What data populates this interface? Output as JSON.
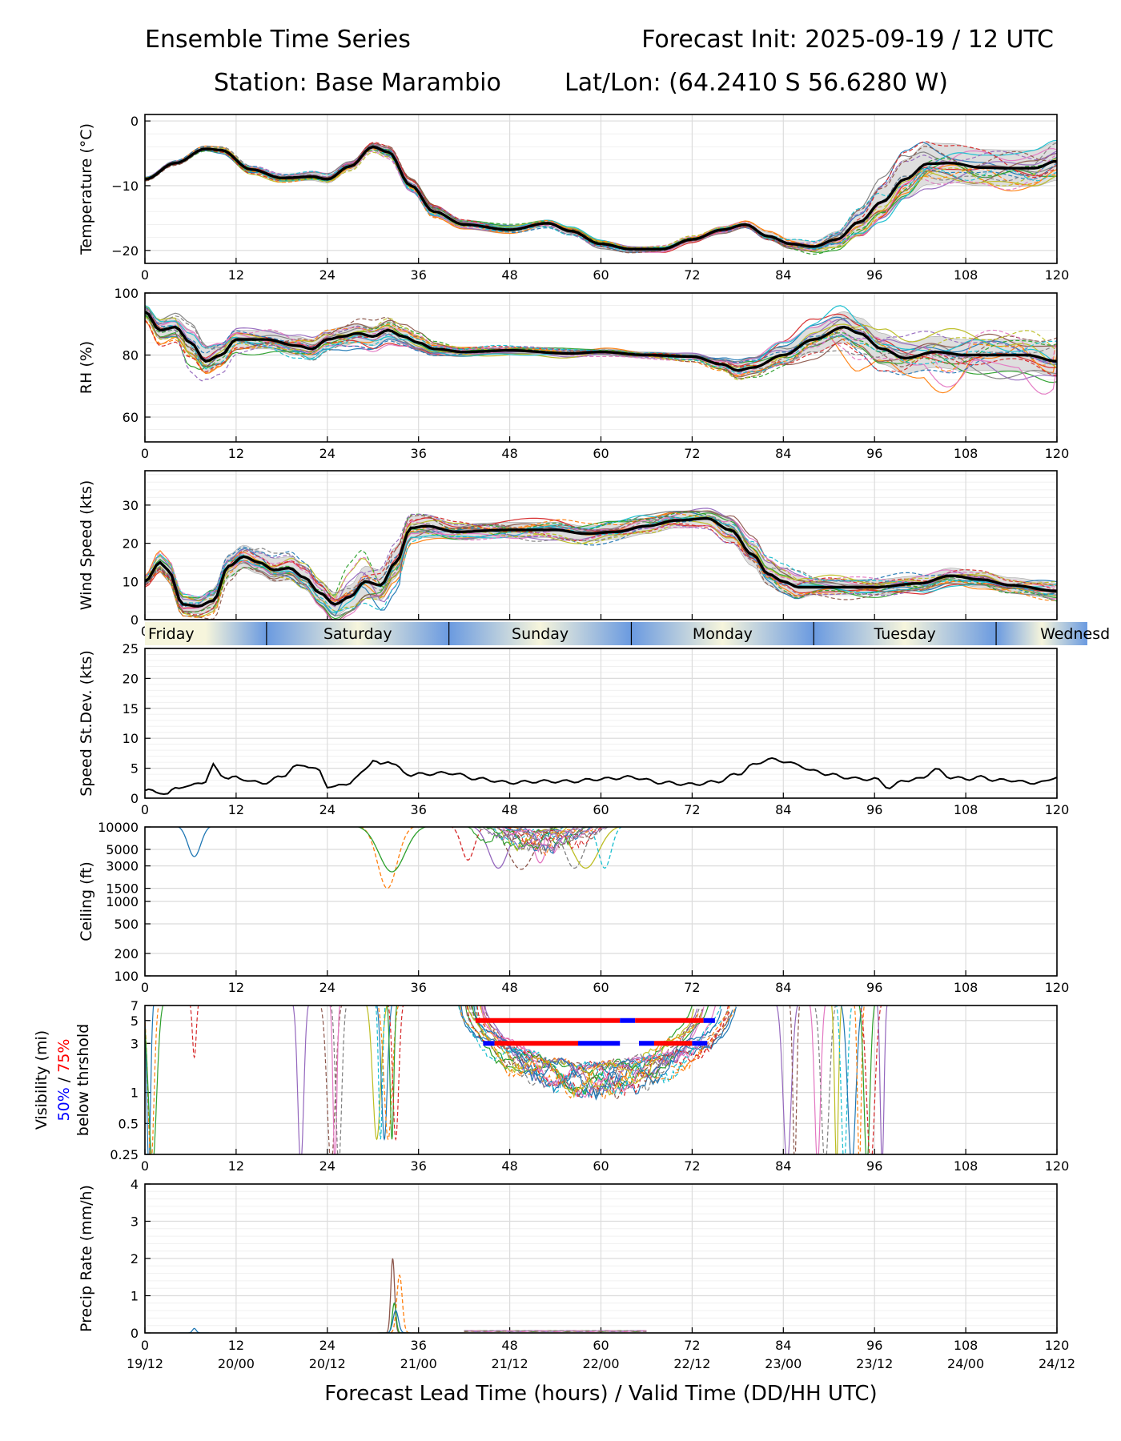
{
  "header": {
    "title_left": "Ensemble Time Series",
    "title_right": "Forecast Init: 2025-09-19 / 12 UTC",
    "station": "Station: Base Marambio",
    "latlon": "Lat/Lon: (64.2410 S 56.6280 W)"
  },
  "colors": {
    "members": [
      "#1f77b4",
      "#ff7f0e",
      "#2ca02c",
      "#d62728",
      "#9467bd",
      "#8c564b",
      "#e377c2",
      "#7f7f7f",
      "#bcbd22",
      "#17becf"
    ],
    "mean": "#000000",
    "spread_fill": "#d9d9d9",
    "vis_50": "#0000ff",
    "vis_75": "#ff0000",
    "day_light": "#f6f5dc",
    "day_dark": "#6a9ae0"
  },
  "days": {
    "labels": [
      "Friday",
      "Saturday",
      "Sunday",
      "Monday",
      "Tuesday",
      "Wednesd"
    ],
    "boundaries_hours": [
      16,
      40,
      64,
      88,
      112
    ]
  },
  "x_axis": {
    "hour_ticks": [
      "0",
      "12",
      "24",
      "36",
      "48",
      "60",
      "72",
      "84",
      "96",
      "108",
      "120"
    ],
    "valid_times": [
      "19/12",
      "20/00",
      "20/12",
      "21/00",
      "21/12",
      "22/00",
      "22/12",
      "23/00",
      "23/12",
      "24/00",
      "24/12"
    ],
    "xlabel": "Forecast Lead Time (hours) / Valid Time (DD/HH UTC)",
    "range": [
      0,
      120
    ]
  },
  "chart_data": [
    {
      "id": "temperature",
      "type": "line",
      "ylabel": "Temperature (°C)",
      "ylim": [
        -22,
        1
      ],
      "yticks": [
        0,
        -10,
        -20
      ],
      "ytick_labels": [
        "0",
        "−10",
        "−20"
      ],
      "mean": {
        "x": [
          0,
          4,
          8,
          10,
          14,
          18,
          22,
          24,
          27,
          30,
          32,
          35,
          38,
          42,
          48,
          53,
          56,
          60,
          64,
          68,
          72,
          76,
          79,
          82,
          85,
          88,
          91,
          94,
          97,
          100,
          103,
          106,
          110,
          114,
          117,
          120
        ],
        "y": [
          -9,
          -6.5,
          -4.3,
          -4.5,
          -7.5,
          -8.8,
          -8.6,
          -9,
          -7,
          -4,
          -4.8,
          -10,
          -14,
          -16,
          -16.8,
          -15.8,
          -17,
          -19,
          -19.8,
          -19.8,
          -18.3,
          -16.8,
          -16,
          -17.8,
          -19,
          -19.4,
          -18.3,
          -15.6,
          -12.5,
          -9,
          -6.6,
          -6.5,
          -7.2,
          -7.3,
          -7.3,
          -6.2
        ]
      },
      "spread": [
        0.3,
        0.3,
        0.3,
        0.4,
        0.5,
        0.6,
        0.6,
        0.6,
        0.6,
        0.6,
        0.7,
        0.8,
        0.8,
        0.7,
        0.6,
        0.5,
        0.5,
        0.5,
        0.4,
        0.4,
        0.4,
        0.5,
        0.5,
        0.6,
        0.7,
        0.8,
        1.2,
        1.8,
        2.5,
        3,
        3.2,
        3,
        2.8,
        2.8,
        2.8,
        3
      ]
    },
    {
      "id": "rh",
      "type": "line",
      "ylabel": "RH (%)",
      "ylim": [
        52,
        100
      ],
      "yticks": [
        100,
        80,
        60
      ],
      "ytick_labels": [
        "100",
        "80",
        "60"
      ],
      "mean": {
        "x": [
          0,
          2,
          4,
          6,
          8,
          10,
          12,
          16,
          20,
          22,
          24,
          26,
          28,
          30,
          32,
          34,
          36,
          38,
          42,
          48,
          56,
          60,
          66,
          72,
          76,
          78,
          80,
          84,
          88,
          92,
          94,
          97,
          100,
          104,
          108,
          112,
          116,
          120
        ],
        "y": [
          94,
          88,
          89,
          84,
          78,
          80,
          85,
          85,
          83,
          82,
          85,
          86,
          87,
          86,
          88,
          86,
          84,
          82,
          81,
          81.5,
          80.5,
          81,
          80,
          79.5,
          77,
          75,
          76,
          80,
          85,
          89,
          87,
          82,
          79,
          81,
          80,
          80,
          80,
          78
        ]
      },
      "spread": [
        2,
        3,
        3,
        4,
        4,
        3.5,
        3,
        3,
        3,
        3,
        3,
        3,
        3,
        3,
        3,
        2.5,
        2,
        1.5,
        1,
        1,
        1,
        1,
        1,
        1,
        1.5,
        2,
        2,
        3,
        4,
        5,
        5,
        5,
        5,
        5,
        5,
        5,
        5,
        5
      ]
    },
    {
      "id": "wind_speed",
      "type": "line",
      "ylabel": "Wind Speed (kts)",
      "ylim": [
        0,
        39
      ],
      "yticks": [
        0,
        10,
        20,
        30
      ],
      "ytick_labels": [
        "0",
        "10",
        "20",
        "30"
      ],
      "mean": {
        "x": [
          0,
          2,
          3,
          5,
          7,
          9,
          11,
          13,
          15,
          17,
          19,
          21,
          23,
          25,
          27,
          29,
          31,
          33,
          35,
          37,
          41,
          48,
          54,
          58,
          62,
          66,
          70,
          74,
          77,
          80,
          82,
          84,
          86,
          88,
          96,
          102,
          106,
          110,
          114,
          120
        ],
        "y": [
          10,
          15,
          13,
          4,
          3.5,
          5,
          14,
          16.5,
          15,
          13,
          13.5,
          11,
          7,
          4,
          6,
          10,
          9,
          15,
          24,
          24.5,
          23,
          23.5,
          23.5,
          22.5,
          23,
          24.5,
          26,
          26.5,
          23.5,
          17,
          12,
          10,
          8.5,
          8.5,
          8.5,
          9.5,
          11.5,
          10.5,
          9,
          7.5
        ]
      },
      "spread": [
        1,
        2,
        2,
        2,
        2,
        3,
        3,
        3,
        3,
        3,
        3,
        3,
        3,
        3,
        3,
        4,
        4,
        4,
        3,
        3,
        2,
        2,
        2,
        2,
        2,
        2,
        2,
        2,
        3,
        3,
        3,
        3,
        3,
        2,
        2,
        2,
        2,
        2,
        2,
        2
      ]
    },
    {
      "id": "speed_stdev",
      "type": "line",
      "ylabel": "Speed St.Dev. (kts)",
      "ylim": [
        0,
        25
      ],
      "yticks": [
        0,
        5,
        10,
        15,
        20,
        25
      ],
      "ytick_labels": [
        "0",
        "5",
        "10",
        "15",
        "20",
        "25"
      ],
      "series": [
        {
          "name": "St.Dev.",
          "x": [
            0,
            2,
            3,
            4,
            5,
            6,
            7,
            8,
            9,
            10,
            11,
            12,
            13,
            14,
            16,
            18,
            20,
            21,
            22,
            23,
            24,
            25,
            26,
            27,
            28,
            29,
            30,
            31,
            32,
            33,
            34,
            35,
            36,
            40,
            44,
            48,
            52,
            56,
            60,
            64,
            68,
            72,
            75,
            78,
            80,
            82,
            84,
            86,
            88,
            90,
            92,
            94,
            96,
            98,
            100,
            102,
            104,
            106,
            108,
            110,
            112,
            114,
            116,
            118,
            120
          ],
          "y": [
            1.3,
            1,
            0.6,
            1.7,
            2,
            1.9,
            2.6,
            2.8,
            5.5,
            4,
            3.2,
            3.5,
            3.2,
            2.7,
            2.6,
            3.7,
            5.3,
            5.6,
            5,
            4.5,
            2,
            1.8,
            2.3,
            2.6,
            3.5,
            5,
            6.3,
            5.5,
            6.3,
            5.5,
            4.3,
            3.9,
            4,
            4.2,
            3.2,
            2.6,
            2.8,
            2.8,
            3.2,
            3.5,
            2.6,
            2.3,
            2.7,
            4,
            5.5,
            6.5,
            6.2,
            5.5,
            4.5,
            4,
            3.5,
            3.2,
            3.2,
            1.8,
            3,
            3.2,
            4.8,
            3.5,
            3.2,
            3.5,
            3,
            3,
            2.6,
            2.6,
            3.6
          ]
        }
      ]
    },
    {
      "id": "ceiling",
      "type": "line",
      "ylabel": "Ceiling (ft)",
      "yscale": "log",
      "ylim": [
        100,
        10000
      ],
      "yticks": [
        10000,
        5000,
        3000,
        1500,
        1000,
        500,
        200,
        100
      ],
      "ytick_labels": [
        "10000",
        "5000",
        "3000",
        "1500",
        "1000",
        "500",
        "200",
        "100"
      ],
      "member_dips": [
        {
          "x": 6.5,
          "y": 4000
        },
        {
          "x": 31.9,
          "y": 1500
        },
        {
          "x": 32.5,
          "y": 2500
        },
        {
          "x": 42.5,
          "y": 3600
        },
        {
          "x": 46.5,
          "y": 2800
        },
        {
          "x": 49.5,
          "y": 2700
        },
        {
          "x": 52,
          "y": 3300
        },
        {
          "x": 56.5,
          "y": 2800
        },
        {
          "x": 58,
          "y": 2800
        },
        {
          "x": 60.5,
          "y": 2800
        }
      ]
    },
    {
      "id": "visibility",
      "type": "line",
      "ylabel": "Visibility (mi)",
      "yscale": "log",
      "ylabel_50": "50%",
      "ylabel_sep": "/",
      "ylabel_75": "75%",
      "ylabel_suffix": "below thrshold",
      "ylim": [
        0.25,
        7
      ],
      "yticks": [
        7,
        5,
        3,
        1,
        0.5,
        0.25
      ],
      "ytick_labels": [
        "7",
        "5",
        "3",
        "1",
        "0.5",
        "0.25"
      ],
      "threshold_bars": [
        {
          "level": 5,
          "x0": 43.5,
          "x1": 62.5,
          "color": "red"
        },
        {
          "level": 5,
          "x0": 62.5,
          "x1": 64.5,
          "color": "blue"
        },
        {
          "level": 5,
          "x0": 64.5,
          "x1": 73.5,
          "color": "red"
        },
        {
          "level": 5,
          "x0": 73.5,
          "x1": 75,
          "color": "blue"
        },
        {
          "level": 3,
          "x0": 44.5,
          "x1": 46,
          "color": "blue"
        },
        {
          "level": 3,
          "x0": 46,
          "x1": 57,
          "color": "red"
        },
        {
          "level": 3,
          "x0": 57,
          "x1": 62.5,
          "color": "blue"
        },
        {
          "level": 3,
          "x0": 65,
          "x1": 67,
          "color": "blue"
        },
        {
          "level": 3,
          "x0": 67,
          "x1": 72,
          "color": "red"
        },
        {
          "level": 3,
          "x0": 72,
          "x1": 74,
          "color": "blue"
        }
      ]
    },
    {
      "id": "precip_rate",
      "type": "line",
      "ylabel": "Precip Rate (mm/h)",
      "ylim": [
        0,
        4
      ],
      "yticks": [
        0,
        1,
        2,
        3,
        4
      ],
      "ytick_labels": [
        "0",
        "1",
        "2",
        "3",
        "4"
      ],
      "member_peaks": [
        {
          "x": 32.6,
          "y": 2.0
        },
        {
          "x": 33.5,
          "y": 1.55
        },
        {
          "x": 32.8,
          "y": 0.8
        },
        {
          "x": 33,
          "y": 0.6
        },
        {
          "x": 6.5,
          "y": 0.12
        }
      ]
    }
  ]
}
